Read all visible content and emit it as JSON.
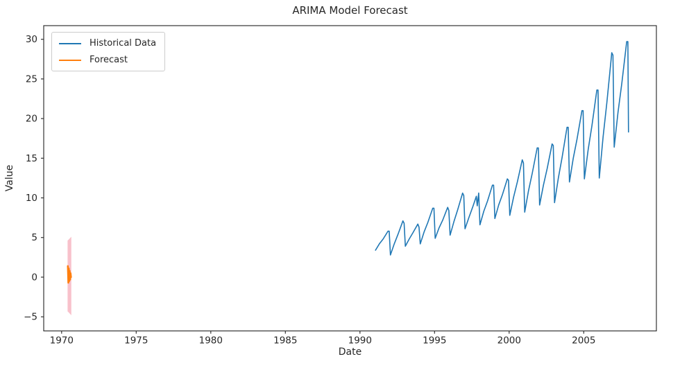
{
  "figure": {
    "title": "ARIMA Model Forecast",
    "xlabel": "Date",
    "ylabel": "Value",
    "background_color": "#ffffff",
    "text_color": "#262626",
    "spine_color": "#333333"
  },
  "legend": {
    "items": [
      {
        "label": "Historical Data",
        "color": "#1f77b4"
      },
      {
        "label": "Forecast",
        "color": "#ff7f0e"
      }
    ]
  },
  "chart_data": {
    "type": "line",
    "title": "ARIMA Model Forecast",
    "xlabel": "Date",
    "ylabel": "Value",
    "xlim": [
      1968.8,
      2009.87
    ],
    "ylim": [
      -6.78,
      31.72
    ],
    "x_ticks": [
      1970,
      1975,
      1980,
      1985,
      1990,
      1995,
      2000,
      2005
    ],
    "y_ticks": [
      -5,
      0,
      5,
      10,
      15,
      20,
      25,
      30
    ],
    "grid": false,
    "legend_position": "upper-left",
    "series": [
      {
        "name": "Historical Data",
        "color": "#1f77b4",
        "line_width": 1.6,
        "x": [
          1991.04,
          1991.3,
          1991.55,
          1991.88,
          1991.96,
          1992.04,
          1992.3,
          1992.55,
          1992.88,
          1992.96,
          1993.04,
          1993.3,
          1993.55,
          1993.88,
          1993.96,
          1994.04,
          1994.3,
          1994.55,
          1994.88,
          1994.96,
          1995.04,
          1995.3,
          1995.55,
          1995.88,
          1995.96,
          1996.04,
          1996.3,
          1996.55,
          1996.88,
          1996.96,
          1997.04,
          1997.3,
          1997.55,
          1997.8,
          1997.86,
          1997.96,
          1998.04,
          1998.3,
          1998.55,
          1998.88,
          1998.96,
          1999.04,
          1999.3,
          1999.55,
          1999.88,
          1999.96,
          2000.04,
          2000.3,
          2000.55,
          2000.88,
          2000.96,
          2001.04,
          2001.3,
          2001.55,
          2001.88,
          2001.96,
          2002.04,
          2002.3,
          2002.55,
          2002.88,
          2002.96,
          2003.04,
          2003.3,
          2003.55,
          2003.88,
          2003.96,
          2004.04,
          2004.3,
          2004.55,
          2004.88,
          2004.96,
          2005.04,
          2005.3,
          2005.55,
          2005.88,
          2005.96,
          2006.04,
          2006.3,
          2006.55,
          2006.88,
          2006.96,
          2007.04,
          2007.3,
          2007.55,
          2007.88,
          2007.96,
          2008.0
        ],
        "y": [
          3.4,
          4.2,
          4.8,
          5.8,
          5.8,
          2.8,
          4.2,
          5.4,
          7.1,
          6.8,
          3.9,
          4.8,
          5.6,
          6.7,
          6.3,
          4.2,
          5.7,
          6.9,
          8.7,
          8.7,
          4.9,
          6.2,
          7.2,
          8.8,
          8.4,
          5.3,
          7.0,
          8.5,
          10.6,
          10.3,
          6.1,
          7.5,
          8.8,
          10.2,
          9.0,
          10.6,
          6.6,
          8.3,
          9.6,
          11.6,
          11.6,
          7.4,
          9.1,
          10.4,
          12.4,
          12.2,
          7.8,
          10.1,
          12.0,
          14.8,
          14.4,
          8.2,
          10.9,
          13.1,
          16.3,
          16.3,
          9.1,
          11.6,
          13.7,
          16.8,
          16.6,
          9.4,
          12.5,
          15.1,
          18.9,
          18.9,
          12.0,
          15.0,
          17.4,
          21.0,
          21.0,
          12.4,
          16.1,
          19.1,
          23.6,
          23.6,
          12.5,
          17.7,
          22.0,
          28.3,
          28.0,
          16.4,
          20.8,
          24.4,
          29.7,
          29.7,
          18.3
        ]
      },
      {
        "name": "Forecast",
        "color": "#ff7f0e",
        "line_width": 2.6,
        "x": [
          1970.42,
          1970.45,
          1970.48,
          1970.51,
          1970.54,
          1970.57,
          1970.6,
          1970.63
        ],
        "y": [
          1.4,
          -0.7,
          1.1,
          -0.5,
          0.8,
          -0.3,
          0.5,
          0.0
        ]
      }
    ],
    "confidence_interval": {
      "name": "forecast-confidence-interval",
      "color": "#f7b6c2",
      "x": [
        1970.4,
        1970.65
      ],
      "upper": [
        4.6,
        5.1
      ],
      "lower": [
        -4.3,
        -4.8
      ]
    }
  }
}
